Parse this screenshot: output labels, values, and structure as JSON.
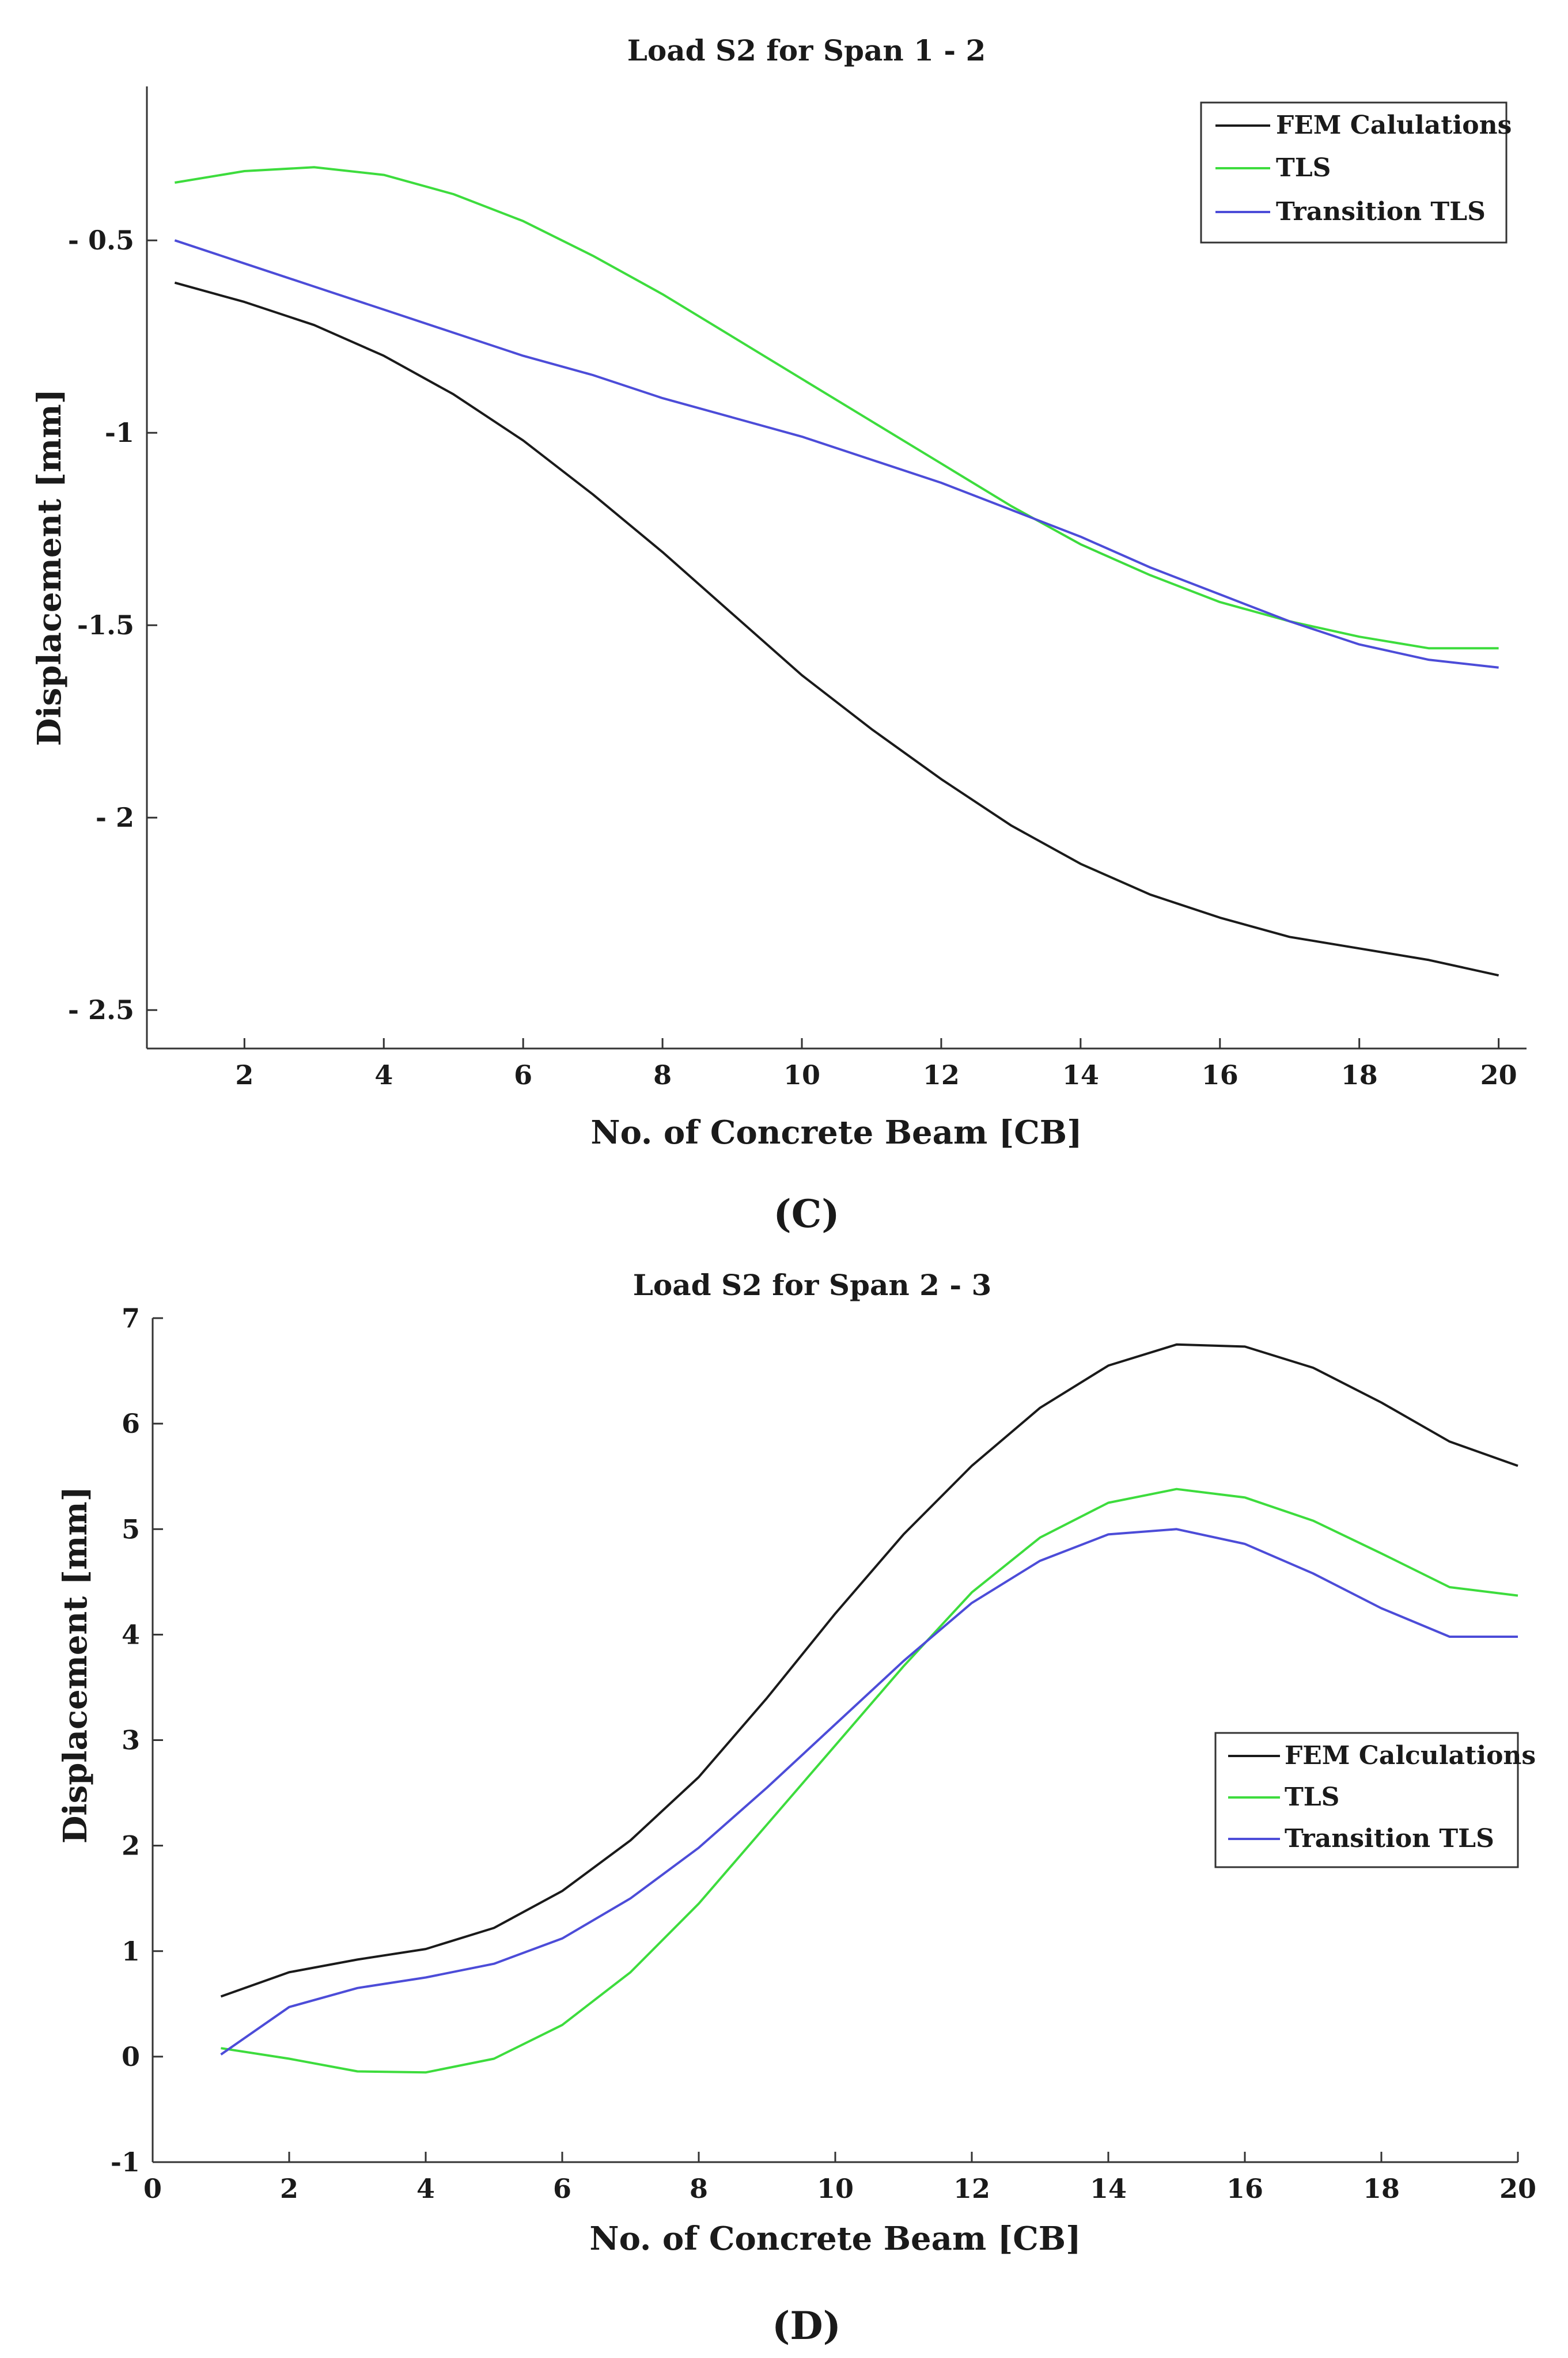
{
  "colors": {
    "fem": "#1a1a1a",
    "tls": "#3ddc3d",
    "transition": "#4c4cd8",
    "axis": "#333333"
  },
  "chart_data": [
    {
      "type": "line",
      "title": "Load S2 for Span 1 - 2",
      "xlabel": "No. of Concrete Beam [CB]",
      "ylabel": "Displacement [mm]",
      "caption": "(C)",
      "xlim": [
        0.6,
        20.4
      ],
      "ylim": [
        -2.6,
        -0.1
      ],
      "xticks": [
        2,
        4,
        6,
        8,
        10,
        12,
        14,
        16,
        18,
        20
      ],
      "xtick_labels": [
        "2",
        "4",
        "6",
        "8",
        "10",
        "12",
        "14",
        "16",
        "18",
        "20"
      ],
      "yticks": [
        -0.5,
        -1,
        -1.5,
        -2,
        -2.5
      ],
      "ytick_labels": [
        "- 0.5",
        "-1",
        "-1.5",
        "- 2",
        "- 2.5"
      ],
      "legend_position": "top-right",
      "x": [
        1,
        2,
        3,
        4,
        5,
        6,
        7,
        8,
        9,
        10,
        11,
        12,
        13,
        14,
        15,
        16,
        17,
        18,
        19,
        20
      ],
      "series": [
        {
          "name": "FEM Calulations",
          "color_key": "fem",
          "values": [
            -0.61,
            -0.66,
            -0.72,
            -0.8,
            -0.9,
            -1.02,
            -1.16,
            -1.31,
            -1.47,
            -1.63,
            -1.77,
            -1.9,
            -2.02,
            -2.12,
            -2.2,
            -2.26,
            -2.31,
            -2.34,
            -2.37,
            -2.41
          ]
        },
        {
          "name": "TLS",
          "color_key": "tls",
          "values": [
            -0.35,
            -0.32,
            -0.31,
            -0.33,
            -0.38,
            -0.45,
            -0.54,
            -0.64,
            -0.75,
            -0.86,
            -0.97,
            -1.08,
            -1.19,
            -1.29,
            -1.37,
            -1.44,
            -1.49,
            -1.53,
            -1.56,
            -1.56
          ]
        },
        {
          "name": "Transition TLS",
          "color_key": "transition",
          "values": [
            -0.5,
            -0.56,
            -0.62,
            -0.68,
            -0.74,
            -0.8,
            -0.85,
            -0.91,
            -0.96,
            -1.01,
            -1.07,
            -1.13,
            -1.2,
            -1.27,
            -1.35,
            -1.42,
            -1.49,
            -1.55,
            -1.59,
            -1.61
          ]
        }
      ]
    },
    {
      "type": "line",
      "title": "Load S2 for Span 2 - 3",
      "xlabel": "No. of Concrete Beam [CB]",
      "ylabel": "Displacement [mm]",
      "caption": "(D)",
      "xlim": [
        0,
        20
      ],
      "ylim": [
        -1,
        7
      ],
      "xticks": [
        0,
        2,
        4,
        6,
        8,
        10,
        12,
        14,
        16,
        18,
        20
      ],
      "xtick_labels": [
        "0",
        "2",
        "4",
        "6",
        "8",
        "10",
        "12",
        "14",
        "16",
        "18",
        "20"
      ],
      "yticks": [
        7,
        6,
        5,
        4,
        3,
        2,
        1,
        0,
        -1
      ],
      "ytick_labels": [
        "7",
        "6",
        "5",
        "4",
        "3",
        "2",
        "1",
        "0",
        "-1"
      ],
      "legend_position": "center-right",
      "x": [
        1,
        2,
        3,
        4,
        5,
        6,
        7,
        8,
        9,
        10,
        11,
        12,
        13,
        14,
        15,
        16,
        17,
        18,
        19,
        20
      ],
      "series": [
        {
          "name": "FEM Calculations",
          "color_key": "fem",
          "values": [
            0.57,
            0.8,
            0.92,
            1.02,
            1.22,
            1.57,
            2.05,
            2.65,
            3.4,
            4.2,
            4.95,
            5.6,
            6.15,
            6.55,
            6.75,
            6.73,
            6.53,
            6.2,
            5.83,
            5.6
          ]
        },
        {
          "name": "TLS",
          "color_key": "tls",
          "values": [
            0.08,
            -0.02,
            -0.14,
            -0.15,
            -0.02,
            0.3,
            0.8,
            1.45,
            2.2,
            2.95,
            3.7,
            4.4,
            4.92,
            5.25,
            5.38,
            5.3,
            5.08,
            4.77,
            4.45,
            4.37
          ]
        },
        {
          "name": "Transition TLS",
          "color_key": "transition",
          "values": [
            0.02,
            0.47,
            0.65,
            0.75,
            0.88,
            1.12,
            1.5,
            1.98,
            2.55,
            3.15,
            3.75,
            4.3,
            4.7,
            4.95,
            5.0,
            4.86,
            4.58,
            4.25,
            3.98,
            3.98
          ]
        }
      ]
    }
  ]
}
